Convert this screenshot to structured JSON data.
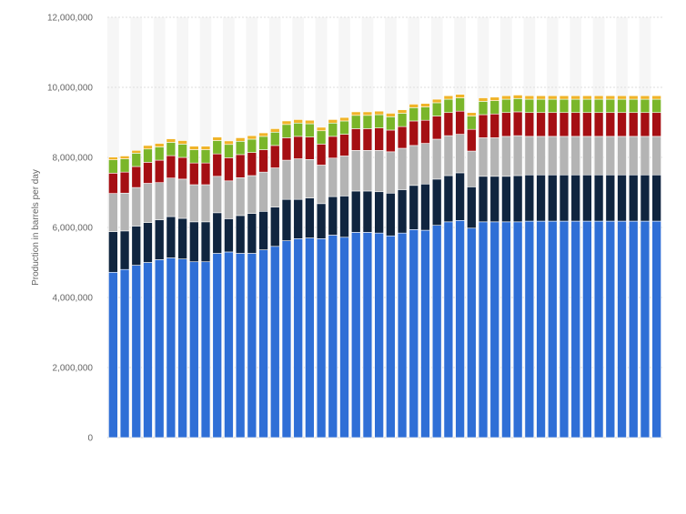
{
  "chart_data": {
    "type": "bar",
    "stacked": true,
    "title": "",
    "xlabel": "",
    "ylabel": "Production in barrels per day",
    "ylim": [
      0,
      12000000
    ],
    "yticks": [
      0,
      2000000,
      4000000,
      6000000,
      8000000,
      10000000,
      12000000
    ],
    "ytick_labels": [
      "0",
      "2,000,000",
      "4,000,000",
      "6,000,000",
      "8,000,000",
      "10,000,000",
      "12,000,000"
    ],
    "grid": true,
    "legend": "none",
    "bar_count": 48,
    "series": [
      {
        "color": "#2f6fd6",
        "values": [
          4720000,
          4800000,
          4920000,
          5000000,
          5080000,
          5130000,
          5100000,
          5020000,
          5020000,
          5260000,
          5300000,
          5260000,
          5260000,
          5360000,
          5460000,
          5620000,
          5680000,
          5700000,
          5680000,
          5780000,
          5720000,
          5860000,
          5860000,
          5840000,
          5760000,
          5840000,
          5940000,
          5920000,
          6060000,
          6160000,
          6200000,
          5980000,
          6160000,
          6160000,
          6160000,
          6160000,
          6180000,
          6180000,
          6180000,
          6180000,
          6180000,
          6180000,
          6180000,
          6180000,
          6180000,
          6180000,
          6180000,
          6180000
        ]
      },
      {
        "color": "#10253f",
        "values": [
          1160000,
          1100000,
          1120000,
          1140000,
          1140000,
          1180000,
          1160000,
          1140000,
          1140000,
          1160000,
          950000,
          1080000,
          1140000,
          1100000,
          1120000,
          1180000,
          1120000,
          1140000,
          1000000,
          1100000,
          1180000,
          1180000,
          1180000,
          1180000,
          1220000,
          1240000,
          1260000,
          1320000,
          1320000,
          1320000,
          1360000,
          1180000,
          1300000,
          1300000,
          1300000,
          1320000,
          1320000,
          1320000,
          1320000,
          1320000,
          1320000,
          1320000,
          1320000,
          1320000,
          1320000,
          1320000,
          1320000,
          1320000
        ]
      },
      {
        "color": "#b4b4b4",
        "values": [
          1090000,
          1080000,
          1100000,
          1120000,
          1060000,
          1100000,
          1120000,
          1060000,
          1060000,
          1040000,
          1080000,
          1080000,
          1080000,
          1120000,
          1120000,
          1120000,
          1160000,
          1100000,
          1100000,
          1100000,
          1140000,
          1160000,
          1160000,
          1180000,
          1180000,
          1180000,
          1140000,
          1160000,
          1140000,
          1140000,
          1100000,
          1020000,
          1100000,
          1100000,
          1140000,
          1140000,
          1100000,
          1100000,
          1100000,
          1100000,
          1100000,
          1100000,
          1100000,
          1100000,
          1100000,
          1100000,
          1100000,
          1100000
        ]
      },
      {
        "color": "#a50f13",
        "values": [
          580000,
          600000,
          600000,
          600000,
          640000,
          640000,
          620000,
          620000,
          620000,
          640000,
          660000,
          660000,
          660000,
          640000,
          640000,
          640000,
          640000,
          640000,
          600000,
          620000,
          620000,
          620000,
          620000,
          640000,
          620000,
          620000,
          700000,
          660000,
          660000,
          660000,
          660000,
          620000,
          660000,
          680000,
          680000,
          680000,
          680000,
          680000,
          680000,
          680000,
          680000,
          680000,
          680000,
          680000,
          680000,
          680000,
          680000,
          680000
        ]
      },
      {
        "color": "#7ab62a",
        "values": [
          380000,
          380000,
          380000,
          380000,
          380000,
          380000,
          380000,
          380000,
          380000,
          380000,
          380000,
          380000,
          380000,
          380000,
          380000,
          380000,
          380000,
          380000,
          380000,
          380000,
          380000,
          380000,
          380000,
          380000,
          380000,
          380000,
          380000,
          380000,
          380000,
          380000,
          380000,
          380000,
          380000,
          380000,
          380000,
          380000,
          380000,
          380000,
          380000,
          380000,
          380000,
          380000,
          380000,
          380000,
          380000,
          380000,
          380000,
          380000
        ]
      },
      {
        "color": "#f0b429",
        "values": [
          80000,
          80000,
          80000,
          100000,
          100000,
          100000,
          100000,
          100000,
          100000,
          100000,
          100000,
          100000,
          100000,
          100000,
          100000,
          100000,
          100000,
          100000,
          100000,
          100000,
          100000,
          100000,
          100000,
          100000,
          100000,
          100000,
          100000,
          100000,
          100000,
          100000,
          100000,
          100000,
          100000,
          100000,
          100000,
          100000,
          100000,
          100000,
          100000,
          100000,
          100000,
          100000,
          100000,
          100000,
          100000,
          100000,
          100000,
          100000
        ]
      }
    ]
  }
}
